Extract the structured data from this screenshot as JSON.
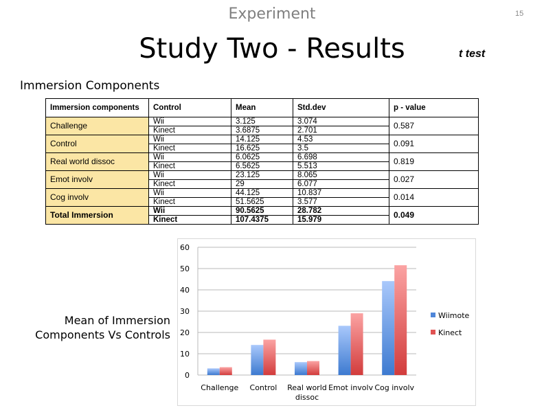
{
  "header": {
    "section": "Experiment",
    "page_number": "15",
    "title": "Study Two - Results",
    "test_label": "t test",
    "subtitle": "Immersion Components"
  },
  "table": {
    "headers": [
      "Immersion components",
      "Control",
      "Mean",
      "Std.dev",
      "p - value"
    ],
    "groups": [
      {
        "name": "Challenge",
        "rows": [
          [
            "Wii",
            "3.125",
            "3.074"
          ],
          [
            "Kinect",
            "3.6875",
            "2.701"
          ]
        ],
        "p": "0.587"
      },
      {
        "name": "Control",
        "rows": [
          [
            "Wii",
            "14.125",
            "4.53"
          ],
          [
            "Kinect",
            "16.625",
            "3.5"
          ]
        ],
        "p": "0.091"
      },
      {
        "name": "Real world dissoc",
        "rows": [
          [
            "Wii",
            "6.0625",
            "6.698"
          ],
          [
            "Kinect",
            "6.5625",
            "5.513"
          ]
        ],
        "p": "0.819"
      },
      {
        "name": "Emot involv",
        "rows": [
          [
            "Wii",
            "23.125",
            "8.065"
          ],
          [
            "Kinect",
            "29",
            "6.077"
          ]
        ],
        "p": "0.027"
      },
      {
        "name": "Cog involv",
        "rows": [
          [
            "Wii",
            "44.125",
            "10.837"
          ],
          [
            "Kinect",
            "51.5625",
            "3.577"
          ]
        ],
        "p": "0.014"
      },
      {
        "name": "Total Immersion",
        "rows": [
          [
            "Wii",
            "90.5625",
            "28.782"
          ],
          [
            "Kinect",
            "107.4375",
            "15.979"
          ]
        ],
        "p": "0.049",
        "bold": true
      }
    ]
  },
  "chart_label": [
    "Mean of Immersion",
    "Components Vs Controls"
  ],
  "chart_data": {
    "type": "bar",
    "title": "",
    "xlabel": "",
    "ylabel": "",
    "categories": [
      [
        "Challenge"
      ],
      [
        "Control"
      ],
      [
        "Real world",
        "dissoc"
      ],
      [
        "Emot involv"
      ],
      [
        "Cog involv"
      ]
    ],
    "series": [
      {
        "name": "Wiimote",
        "values": [
          3.125,
          14.125,
          6.0625,
          23.125,
          44.125
        ],
        "color": "#4f86d9"
      },
      {
        "name": "Kinect",
        "values": [
          3.6875,
          16.625,
          6.5625,
          29,
          51.5625
        ],
        "color": "#e05252"
      }
    ],
    "ylim": [
      0,
      60
    ],
    "yticks": [
      0,
      10,
      20,
      30,
      40,
      50,
      60
    ],
    "grid": true,
    "legend": "right"
  }
}
